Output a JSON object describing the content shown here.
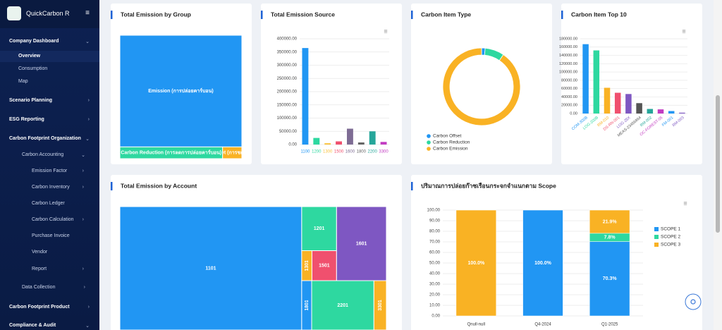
{
  "sidebar": {
    "brand": "QuickCarbon R",
    "items": [
      "Company Dashboard",
      "Overview",
      "Consumption",
      "Map",
      "Scenario Planning",
      "ESG Reporting",
      "Carbon Footprint Organization",
      "Carbon Accounting",
      "Emission Factor",
      "Carbon Inventory",
      "Carbon Ledger",
      "Carbon Calculation",
      "Purchase Invoice",
      "Vendor",
      "Report",
      "Data Collection",
      "Carbon Footprint Product",
      "Compliance & Audit"
    ]
  },
  "chart_data": [
    {
      "type": "treemap",
      "title": "Total Emission by Group",
      "labels": [
        "Emission (การปล่อยคาร์บอน)",
        "Carbon Reduction (การลดการปล่อยคาร์บอน)",
        "Carbon Offset (การชดเชยคาร์บอน)"
      ],
      "values": [
        90.5,
        8,
        1.5
      ],
      "colors": [
        "#2196f3",
        "#2ed8a0",
        "#f9b224"
      ]
    },
    {
      "type": "bar",
      "title": "Total Emission Source",
      "categories": [
        "1100",
        "1200",
        "1300",
        "1500",
        "1600",
        "1800",
        "2200",
        "3300"
      ],
      "values": [
        365000,
        25000,
        5000,
        12000,
        60000,
        8000,
        50000,
        10000
      ],
      "colors": [
        "#2196f3",
        "#2ed8a0",
        "#f9c23c",
        "#f0506e",
        "#7e6c94",
        "#666666",
        "#26a69a",
        "#c23cc2"
      ],
      "ylim": [
        0,
        400000
      ],
      "yticks": [
        {
          "value": 0,
          "label": "0.00"
        },
        {
          "value": 50000,
          "label": "50000.00"
        },
        {
          "value": 100000,
          "label": "100000.00"
        },
        {
          "value": 150000,
          "label": "150000.00"
        },
        {
          "value": 200000,
          "label": "200000.00"
        },
        {
          "value": 250000,
          "label": "250000.00"
        },
        {
          "value": 300000,
          "label": "300000.00"
        },
        {
          "value": 350000,
          "label": "350000.00"
        },
        {
          "value": 400000,
          "label": "400000.00"
        }
      ],
      "grid": true
    },
    {
      "type": "donut",
      "title": "Carbon Item Type",
      "categories": [
        "Carbon Offset",
        "Carbon Reduction",
        "Carbon Emission"
      ],
      "values": [
        1.5,
        8,
        90.5
      ],
      "colors": [
        "#2196f3",
        "#2ed8a0",
        "#f9b224"
      ]
    },
    {
      "type": "bar",
      "title": "Carbon Item Top 10",
      "categories": [
        "COM-300B",
        "LOG-200B",
        "RM-010",
        "DS-RN-001",
        "LOG-25X",
        "MEAS-23456864",
        "RM-002",
        "OC-FOREST-05",
        "FM-001",
        "RM-003"
      ],
      "values": [
        167000,
        152000,
        62000,
        50000,
        47000,
        25000,
        11000,
        10000,
        6000,
        2000
      ],
      "colors": [
        "#2196f3",
        "#2ed8a0",
        "#f9b224",
        "#f0506e",
        "#7e57c2",
        "#555555",
        "#26a69a",
        "#c23cc2",
        "#2196f3",
        "#7e57c2"
      ],
      "ylim": [
        0,
        180000
      ],
      "yticks": [
        {
          "value": 0,
          "label": "0.00"
        },
        {
          "value": 20000,
          "label": "20000.00"
        },
        {
          "value": 40000,
          "label": "40000.00"
        },
        {
          "value": 60000,
          "label": "60000.00"
        },
        {
          "value": 80000,
          "label": "80000.00"
        },
        {
          "value": 100000,
          "label": "100000.00"
        },
        {
          "value": 120000,
          "label": "120000.00"
        },
        {
          "value": 140000,
          "label": "140000.00"
        },
        {
          "value": 160000,
          "label": "160000.00"
        },
        {
          "value": 180000,
          "label": "180000.00"
        }
      ],
      "grid": true
    },
    {
      "type": "treemap",
      "title": "Total Emission by Account",
      "labels": [
        "1101",
        "1201",
        "1301",
        "1501",
        "1601",
        "1801",
        "2201",
        "3301"
      ],
      "values": [
        365000,
        25000,
        5000,
        12000,
        60000,
        8000,
        50000,
        10000
      ],
      "colors": [
        "#2196f3",
        "#2ed8a0",
        "#f9b224",
        "#f0506e",
        "#7e57c2",
        "#2196f3",
        "#2ed8a0",
        "#f9b224"
      ]
    },
    {
      "type": "stacked",
      "title": "ปริมาณการปล่อยก๊าซเรือนกระจกจำแนกตาม Scope",
      "categories": [
        "Qnull-null",
        "Q4-2024",
        "Q1-2025"
      ],
      "series": [
        {
          "name": "SCOPE 1",
          "color": "#2196f3",
          "values": [
            0,
            100,
            70.3
          ],
          "value_labels": [
            null,
            "100.0%",
            "70.3%"
          ]
        },
        {
          "name": "SCOPE 2",
          "color": "#2ed8a0",
          "values": [
            0,
            0,
            7.8
          ],
          "value_labels": [
            null,
            null,
            "7.8%"
          ]
        },
        {
          "name": "SCOPE 3",
          "color": "#f9b224",
          "values": [
            100,
            0,
            21.9
          ],
          "value_labels": [
            "100.0%",
            null,
            "21.9%"
          ]
        }
      ],
      "ylim": [
        0,
        100
      ],
      "yticks": [
        {
          "value": 0,
          "label": "0.00"
        },
        {
          "value": 10,
          "label": "10.00"
        },
        {
          "value": 20,
          "label": "20.00"
        },
        {
          "value": 30,
          "label": "30.00"
        },
        {
          "value": 40,
          "label": "40.00"
        },
        {
          "value": 50,
          "label": "50.00"
        },
        {
          "value": 60,
          "label": "60.00"
        },
        {
          "value": 70,
          "label": "70.00"
        },
        {
          "value": 80,
          "label": "80.00"
        },
        {
          "value": 90,
          "label": "90.00"
        },
        {
          "value": 100,
          "label": "100.00"
        }
      ],
      "grid": true
    }
  ]
}
